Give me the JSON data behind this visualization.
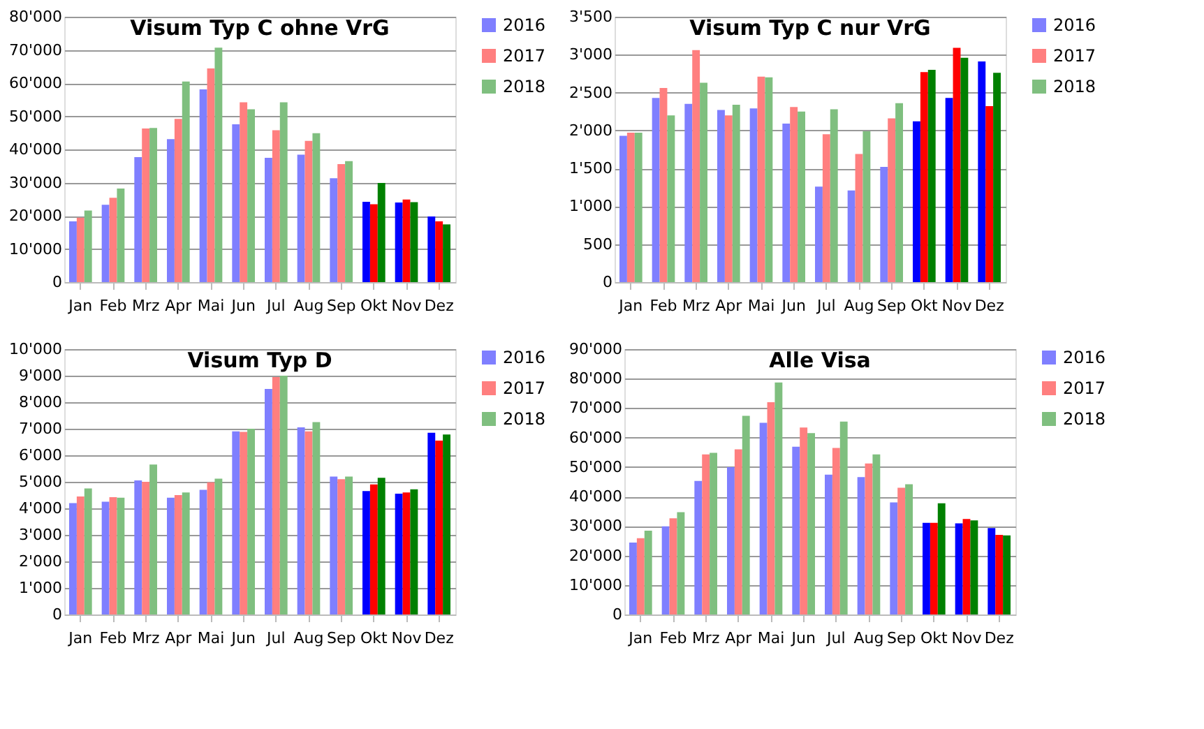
{
  "chart_data": [
    {
      "type": "bar",
      "title": "Visum Typ C ohne VrG",
      "categories": [
        "Jan",
        "Feb",
        "Mrz",
        "Apr",
        "Mai",
        "Jun",
        "Jul",
        "Aug",
        "Sep",
        "Okt",
        "Nov",
        "Dez"
      ],
      "ylim": [
        0,
        80000
      ],
      "yticks": [
        0,
        {
          "value": 10000,
          "label": "10'000"
        },
        {
          "value": 20000,
          "label": "20'000"
        },
        {
          "value": 30000,
          "label": "30'000"
        },
        {
          "value": 40000,
          "label": "40'000"
        },
        {
          "value": 50000,
          "label": "50'000"
        },
        {
          "value": 60000,
          "label": "60'000"
        },
        {
          "value": 70000,
          "label": "70'000"
        },
        {
          "value": 80000,
          "label": "80'000"
        }
      ],
      "grid": "y",
      "legend": "right",
      "series": [
        {
          "name": "2016",
          "color": "#7f7fff",
          "colors": [
            "#7f7fff",
            "#7f7fff",
            "#7f7fff",
            "#7f7fff",
            "#7f7fff",
            "#7f7fff",
            "#7f7fff",
            "#7f7fff",
            "#7f7fff",
            "#0000ff",
            "#0000ff",
            "#0000ff"
          ],
          "values": [
            18300,
            23300,
            37700,
            43100,
            58100,
            47600,
            37500,
            38400,
            31300,
            24200,
            24000,
            19800
          ]
        },
        {
          "name": "2017",
          "color": "#ff7f7f",
          "colors": [
            "#ff7f7f",
            "#ff7f7f",
            "#ff7f7f",
            "#ff7f7f",
            "#ff7f7f",
            "#ff7f7f",
            "#ff7f7f",
            "#ff7f7f",
            "#ff7f7f",
            "#ff0000",
            "#ff0000",
            "#ff0000"
          ],
          "values": [
            19400,
            25400,
            46300,
            49200,
            64400,
            54200,
            45800,
            42600,
            35600,
            23500,
            24900,
            18300
          ]
        },
        {
          "name": "2018",
          "color": "#7fbf7f",
          "colors": [
            "#7fbf7f",
            "#7fbf7f",
            "#7fbf7f",
            "#7fbf7f",
            "#7fbf7f",
            "#7fbf7f",
            "#7fbf7f",
            "#7fbf7f",
            "#7fbf7f",
            "#008000",
            "#008000",
            "#008000"
          ],
          "values": [
            21600,
            28200,
            46500,
            60500,
            70700,
            52100,
            54200,
            44900,
            36500,
            29900,
            24100,
            17400
          ]
        }
      ]
    },
    {
      "type": "bar",
      "title": "Visum Typ C nur VrG",
      "categories": [
        "Jan",
        "Feb",
        "Mrz",
        "Apr",
        "Mai",
        "Jun",
        "Jul",
        "Aug",
        "Sep",
        "Okt",
        "Nov",
        "Dez"
      ],
      "ylim": [
        0,
        3500
      ],
      "yticks": [
        0,
        500,
        {
          "value": 1000,
          "label": "1'000"
        },
        {
          "value": 1500,
          "label": "1'500"
        },
        {
          "value": 2000,
          "label": "2'000"
        },
        {
          "value": 2500,
          "label": "2'500"
        },
        {
          "value": 3000,
          "label": "3'000"
        },
        {
          "value": 3500,
          "label": "3'500"
        }
      ],
      "grid": "y",
      "legend": "right",
      "series": [
        {
          "name": "2016",
          "color": "#7f7fff",
          "colors": [
            "#7f7fff",
            "#7f7fff",
            "#7f7fff",
            "#7f7fff",
            "#7f7fff",
            "#7f7fff",
            "#7f7fff",
            "#7f7fff",
            "#7f7fff",
            "#0000ff",
            "#0000ff",
            "#0000ff"
          ],
          "values": [
            1930,
            2430,
            2350,
            2270,
            2290,
            2090,
            1260,
            1210,
            1520,
            2120,
            2430,
            2910
          ]
        },
        {
          "name": "2017",
          "color": "#ff7f7f",
          "colors": [
            "#ff7f7f",
            "#ff7f7f",
            "#ff7f7f",
            "#ff7f7f",
            "#ff7f7f",
            "#ff7f7f",
            "#ff7f7f",
            "#ff7f7f",
            "#ff7f7f",
            "#ff0000",
            "#ff0000",
            "#ff0000"
          ],
          "values": [
            1970,
            2560,
            3060,
            2200,
            2710,
            2310,
            1950,
            1690,
            2160,
            2770,
            3090,
            2320
          ]
        },
        {
          "name": "2018",
          "color": "#7fbf7f",
          "colors": [
            "#7fbf7f",
            "#7fbf7f",
            "#7fbf7f",
            "#7fbf7f",
            "#7fbf7f",
            "#7fbf7f",
            "#7fbf7f",
            "#7fbf7f",
            "#7fbf7f",
            "#008000",
            "#008000",
            "#008000"
          ],
          "values": [
            1970,
            2200,
            2630,
            2340,
            2700,
            2250,
            2280,
            1990,
            2360,
            2800,
            2960,
            2760
          ]
        }
      ]
    },
    {
      "type": "bar",
      "title": "Visum Typ D",
      "categories": [
        "Jan",
        "Feb",
        "Mrz",
        "Apr",
        "Mai",
        "Jun",
        "Jul",
        "Aug",
        "Sep",
        "Okt",
        "Nov",
        "Dez"
      ],
      "ylim": [
        0,
        10000
      ],
      "yticks": [
        0,
        {
          "value": 1000,
          "label": "1'000"
        },
        {
          "value": 2000,
          "label": "2'000"
        },
        {
          "value": 3000,
          "label": "3'000"
        },
        {
          "value": 4000,
          "label": "4'000"
        },
        {
          "value": 5000,
          "label": "5'000"
        },
        {
          "value": 6000,
          "label": "6'000"
        },
        {
          "value": 7000,
          "label": "7'000"
        },
        {
          "value": 8000,
          "label": "8'000"
        },
        {
          "value": 9000,
          "label": "9'000"
        },
        {
          "value": 10000,
          "label": "10'000"
        }
      ],
      "grid": "y",
      "legend": "right",
      "series": [
        {
          "name": "2016",
          "color": "#7f7fff",
          "colors": [
            "#7f7fff",
            "#7f7fff",
            "#7f7fff",
            "#7f7fff",
            "#7f7fff",
            "#7f7fff",
            "#7f7fff",
            "#7f7fff",
            "#7f7fff",
            "#0000ff",
            "#0000ff",
            "#0000ff"
          ],
          "values": [
            4200,
            4250,
            5050,
            4400,
            4700,
            6900,
            8500,
            7050,
            5200,
            4650,
            4550,
            6850
          ]
        },
        {
          "name": "2017",
          "color": "#ff7f7f",
          "colors": [
            "#ff7f7f",
            "#ff7f7f",
            "#ff7f7f",
            "#ff7f7f",
            "#ff7f7f",
            "#ff7f7f",
            "#ff7f7f",
            "#ff7f7f",
            "#ff7f7f",
            "#ff0000",
            "#ff0000",
            "#ff0000"
          ],
          "values": [
            4450,
            4420,
            5000,
            4500,
            4980,
            6880,
            8950,
            6900,
            5100,
            4900,
            4600,
            6550
          ]
        },
        {
          "name": "2018",
          "color": "#7fbf7f",
          "colors": [
            "#7fbf7f",
            "#7fbf7f",
            "#7fbf7f",
            "#7fbf7f",
            "#7fbf7f",
            "#7fbf7f",
            "#7fbf7f",
            "#7fbf7f",
            "#7fbf7f",
            "#008000",
            "#008000",
            "#008000"
          ],
          "values": [
            4750,
            4400,
            5650,
            4600,
            5120,
            7000,
            9000,
            7250,
            5200,
            5150,
            4720,
            6780
          ]
        }
      ]
    },
    {
      "type": "bar",
      "title": "Alle Visa",
      "categories": [
        "Jan",
        "Feb",
        "Mrz",
        "Apr",
        "Mai",
        "Jun",
        "Jul",
        "Aug",
        "Sep",
        "Okt",
        "Nov",
        "Dez"
      ],
      "ylim": [
        0,
        90000
      ],
      "yticks": [
        0,
        {
          "value": 10000,
          "label": "10'000"
        },
        {
          "value": 20000,
          "label": "20'000"
        },
        {
          "value": 30000,
          "label": "30'000"
        },
        {
          "value": 40000,
          "label": "40'000"
        },
        {
          "value": 50000,
          "label": "50'000"
        },
        {
          "value": 60000,
          "label": "60'000"
        },
        {
          "value": 70000,
          "label": "70'000"
        },
        {
          "value": 80000,
          "label": "80'000"
        },
        {
          "value": 90000,
          "label": "90'000"
        }
      ],
      "grid": "y",
      "legend": "right",
      "series": [
        {
          "name": "2016",
          "color": "#7f7fff",
          "colors": [
            "#7f7fff",
            "#7f7fff",
            "#7f7fff",
            "#7f7fff",
            "#7f7fff",
            "#7f7fff",
            "#7f7fff",
            "#7f7fff",
            "#7f7fff",
            "#0000ff",
            "#0000ff",
            "#0000ff"
          ],
          "values": [
            24400,
            29900,
            45300,
            50000,
            65000,
            56900,
            47400,
            46600,
            38000,
            31100,
            30900,
            29300
          ]
        },
        {
          "name": "2017",
          "color": "#ff7f7f",
          "colors": [
            "#ff7f7f",
            "#ff7f7f",
            "#ff7f7f",
            "#ff7f7f",
            "#ff7f7f",
            "#ff7f7f",
            "#ff7f7f",
            "#ff7f7f",
            "#ff7f7f",
            "#ff0000",
            "#ff0000",
            "#ff0000"
          ],
          "values": [
            25900,
            32600,
            54300,
            56000,
            72000,
            63400,
            56500,
            51200,
            43000,
            31100,
            32400,
            27000
          ]
        },
        {
          "name": "2018",
          "color": "#7fbf7f",
          "colors": [
            "#7fbf7f",
            "#7fbf7f",
            "#7fbf7f",
            "#7fbf7f",
            "#7fbf7f",
            "#7fbf7f",
            "#7fbf7f",
            "#7fbf7f",
            "#7fbf7f",
            "#008000",
            "#008000",
            "#008000"
          ],
          "values": [
            28400,
            34700,
            54800,
            67400,
            78700,
            61500,
            65400,
            54300,
            44200,
            37700,
            31900,
            26800
          ]
        }
      ]
    }
  ]
}
